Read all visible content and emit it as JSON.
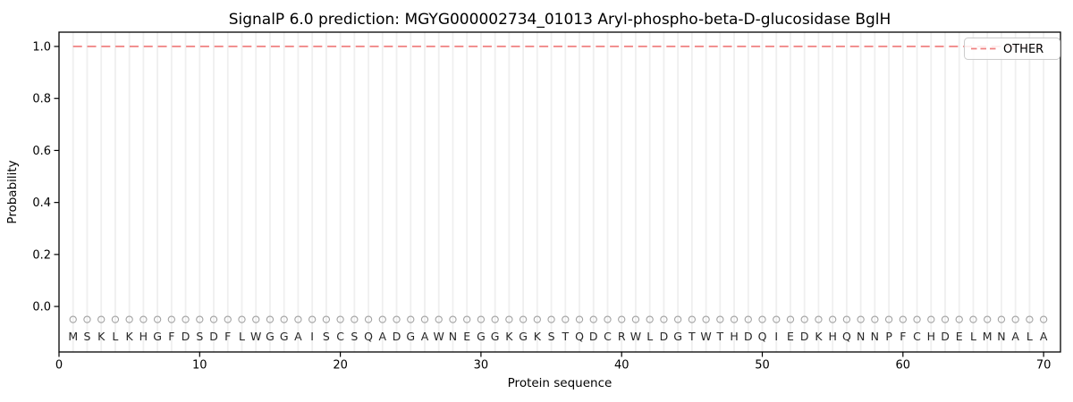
{
  "chart_data": {
    "type": "line",
    "title": "SignalP 6.0 prediction: MGYG000002734_01013 Aryl-phospho-beta-D-glucosidase BglH",
    "xlabel": "Protein sequence",
    "ylabel": "Probability",
    "xlim": [
      0,
      71.2
    ],
    "ylim": [
      -0.175,
      1.055
    ],
    "xticks": [
      0,
      10,
      20,
      30,
      40,
      50,
      60,
      70
    ],
    "yticks": [
      0.0,
      0.2,
      0.4,
      0.6,
      0.8,
      1.0
    ],
    "yticklabels": [
      "0.0",
      "0.2",
      "0.4",
      "0.6",
      "0.8",
      "1.0"
    ],
    "grid": {
      "vertical_per_residue": true,
      "color": "#efefef"
    },
    "legend": {
      "position": "upper-right",
      "entries": [
        {
          "label": "OTHER",
          "color": "#f08080",
          "linestyle": "dashed"
        }
      ]
    },
    "series": [
      {
        "name": "OTHER",
        "linestyle": "dashed",
        "color": "#f08080",
        "x_start": 1,
        "x_end": 70,
        "y_constant": 1.0
      }
    ],
    "sequence": "MSKLKHGFDSDFLWGGAISCSQADGAWNEGGKGKSTQDCRWLDGTWTHDQIEDKHQNNPFCHDELMNALA",
    "sequence_marker": {
      "symbol": "open-circle",
      "y": -0.05,
      "color": "#a3a3a3"
    },
    "sequence_letter_color": "#262626",
    "axis_color": "#000000"
  }
}
